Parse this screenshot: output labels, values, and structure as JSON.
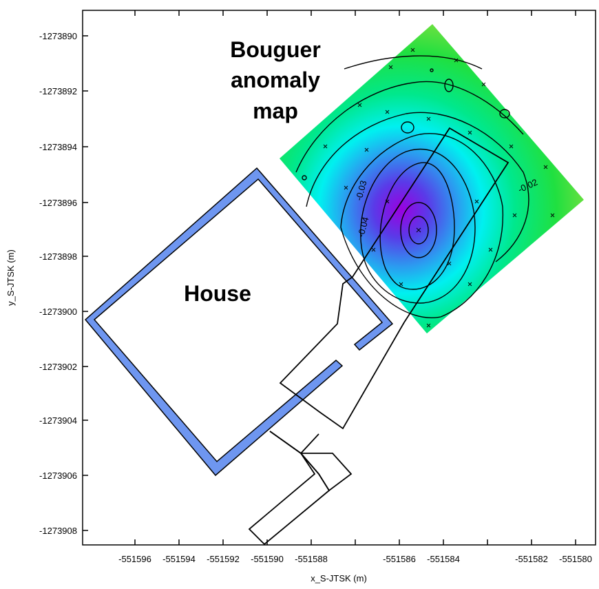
{
  "map": {
    "title_lines": [
      "Bouguer",
      "anomaly",
      "map"
    ],
    "house_label": "House",
    "x_axis_title": "x_S-JTSK (m)",
    "y_axis_title": "y_S-JTSK (m)",
    "x_ticks": [
      "-551596",
      "-551594",
      "-551592",
      "-551590",
      "-551588",
      "-551586",
      "-551584",
      "-551582",
      "-551580"
    ],
    "y_ticks": [
      "-1273890",
      "-1273892",
      "-1273894",
      "-1273896",
      "-1273898",
      "-1273900",
      "-1273902",
      "-1273904",
      "-1273906",
      "-1273908"
    ],
    "contour_labels": [
      "-0.03",
      "-0.04",
      "-0.02"
    ],
    "colors": {
      "wall_fill": "#6e96f0",
      "anomaly_high": "#9be23c",
      "anomaly_mid": "#00e060",
      "anomaly_low": "#00f0f0",
      "anomaly_min": "#9a00e0"
    }
  },
  "chart_data": {
    "type": "contour-map",
    "xlim": [
      -551598,
      -551579
    ],
    "ylim": [
      -1273908.5,
      -1273889
    ],
    "x_label": "x_S-JTSK (m)",
    "y_label": "y_S-JTSK (m)",
    "contour_levels_labeled": [
      -0.03,
      -0.04,
      -0.02
    ],
    "anomaly_minimum_approx": {
      "x": -551585.8,
      "y": -1273897
    }
  }
}
